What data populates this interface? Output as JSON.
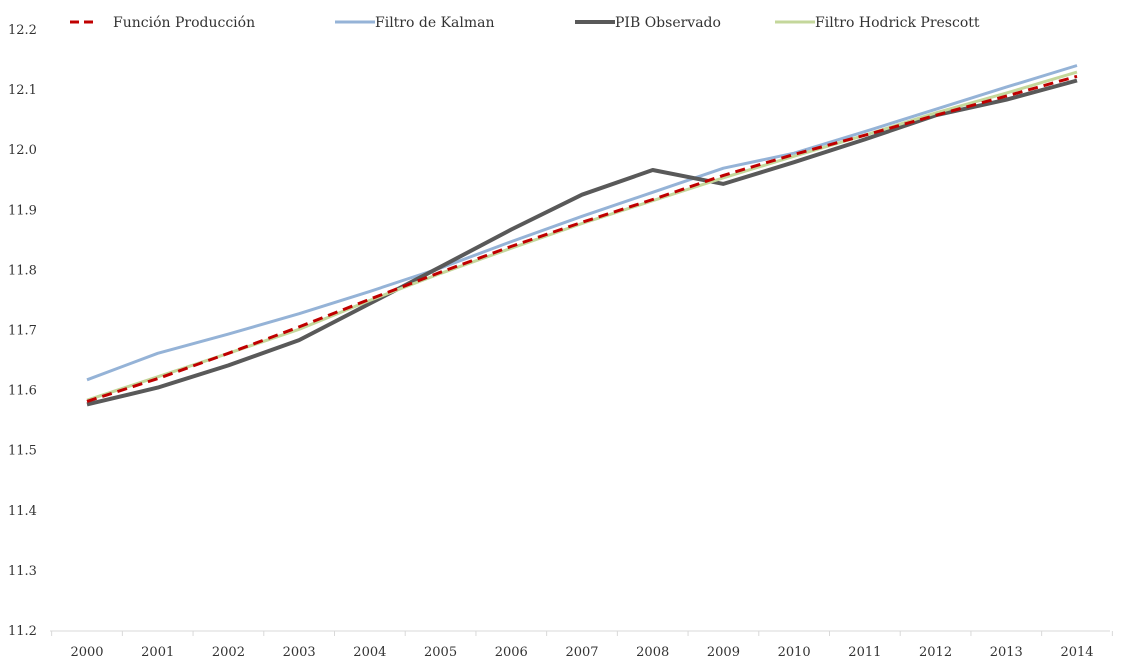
{
  "chart_data": {
    "type": "line",
    "title": "",
    "xlabel": "",
    "ylabel": "",
    "x": [
      "2000",
      "2001",
      "2002",
      "2003",
      "2004",
      "2005",
      "2006",
      "2007",
      "2008",
      "2009",
      "2010",
      "2011",
      "2012",
      "2013",
      "2014"
    ],
    "ylim": [
      11.2,
      12.2
    ],
    "yticks": [
      "11.2",
      "11.3",
      "11.4",
      "11.5",
      "11.6",
      "11.7",
      "11.8",
      "11.9",
      "12.0",
      "12.1",
      "12.2"
    ],
    "grid": false,
    "legend_position": "top",
    "series": [
      {
        "name": "Función Producción",
        "color": "#c00000",
        "style": "dashed",
        "values": [
          11.582,
          11.62,
          11.662,
          11.706,
          11.752,
          11.797,
          11.84,
          11.88,
          11.918,
          11.958,
          11.993,
          12.025,
          12.058,
          12.09,
          12.123
        ]
      },
      {
        "name": "Filtro de Kalman",
        "color": "#95b3d7",
        "style": "solid",
        "values": [
          11.618,
          11.662,
          11.694,
          11.728,
          11.765,
          11.804,
          11.848,
          11.89,
          11.93,
          11.97,
          11.995,
          12.031,
          12.068,
          12.105,
          12.141
        ]
      },
      {
        "name": "PIB Observado",
        "color": "#595959",
        "style": "solid",
        "values": [
          11.577,
          11.605,
          11.642,
          11.684,
          11.745,
          11.806,
          11.868,
          11.926,
          11.967,
          11.944,
          11.98,
          12.018,
          12.058,
          12.084,
          12.116
        ]
      },
      {
        "name": "Filtro Hodrick Prescott",
        "color": "#c4d79b",
        "style": "solid",
        "values": [
          11.584,
          11.623,
          11.662,
          11.702,
          11.75,
          11.795,
          11.837,
          11.878,
          11.916,
          11.954,
          11.99,
          12.025,
          12.062,
          12.095,
          12.13
        ]
      }
    ]
  }
}
